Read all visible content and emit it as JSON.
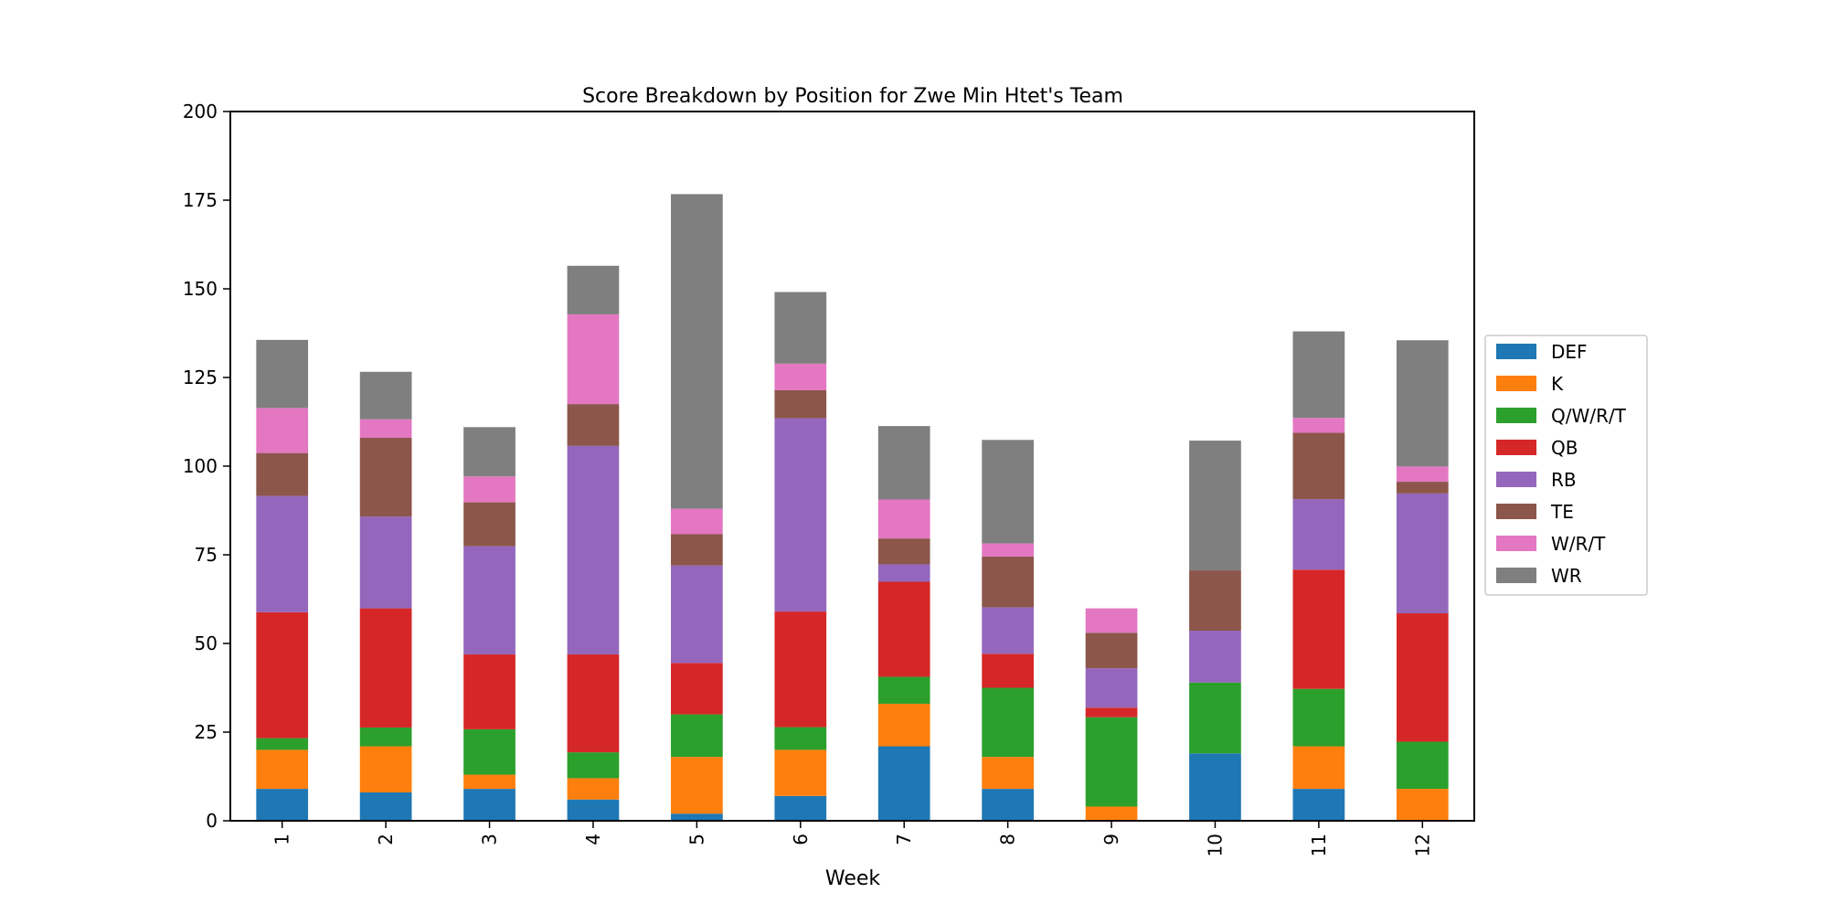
{
  "chart_data": {
    "type": "bar",
    "stacked": true,
    "title": "Score Breakdown by Position for Zwe Min Htet's Team",
    "xlabel": "Week",
    "ylabel": "",
    "ylim": [
      0,
      200
    ],
    "yticks": [
      0,
      25,
      50,
      75,
      100,
      125,
      150,
      175,
      200
    ],
    "categories": [
      "1",
      "2",
      "3",
      "4",
      "5",
      "6",
      "7",
      "8",
      "9",
      "10",
      "11",
      "12"
    ],
    "legend_position": "right",
    "series": [
      {
        "name": "DEF",
        "color": "#1f77b4",
        "values": [
          9,
          8,
          9,
          6,
          2,
          7,
          21,
          9,
          0,
          19,
          9,
          0
        ]
      },
      {
        "name": "K",
        "color": "#ff7f0e",
        "values": [
          11,
          13,
          4,
          6,
          16,
          13,
          12,
          9,
          4,
          0,
          12,
          9
        ]
      },
      {
        "name": "Q/W/R/T",
        "color": "#2ca02c",
        "values": [
          3.3,
          5.3,
          12.8,
          7.3,
          12,
          6.4,
          7.6,
          19.5,
          25.2,
          20,
          16.2,
          13.3
        ]
      },
      {
        "name": "QB",
        "color": "#d62728",
        "values": [
          35.5,
          33.6,
          21.1,
          27.6,
          14.5,
          32.6,
          26.8,
          9.6,
          2.7,
          0,
          33.6,
          36.2
        ]
      },
      {
        "name": "RB",
        "color": "#9467bd",
        "values": [
          32.8,
          25.9,
          30.5,
          58.8,
          27.5,
          54.5,
          4.9,
          13.1,
          11.1,
          14.6,
          19.9,
          33.8
        ]
      },
      {
        "name": "TE",
        "color": "#8c564b",
        "values": [
          12.1,
          22.2,
          12.4,
          11.8,
          8.8,
          7.9,
          7.3,
          14.3,
          10,
          17,
          18.7,
          3.3
        ]
      },
      {
        "name": "W/R/T",
        "color": "#e377c2",
        "values": [
          12.7,
          5.2,
          7.3,
          25.3,
          7.2,
          7.5,
          11,
          3.7,
          6.9,
          0,
          4.2,
          4.3
        ]
      },
      {
        "name": "WR",
        "color": "#7f7f7f",
        "values": [
          19.2,
          13.4,
          13.9,
          13.7,
          88.7,
          20.2,
          20.7,
          29.2,
          0,
          36.6,
          24.4,
          35.6
        ]
      }
    ]
  }
}
